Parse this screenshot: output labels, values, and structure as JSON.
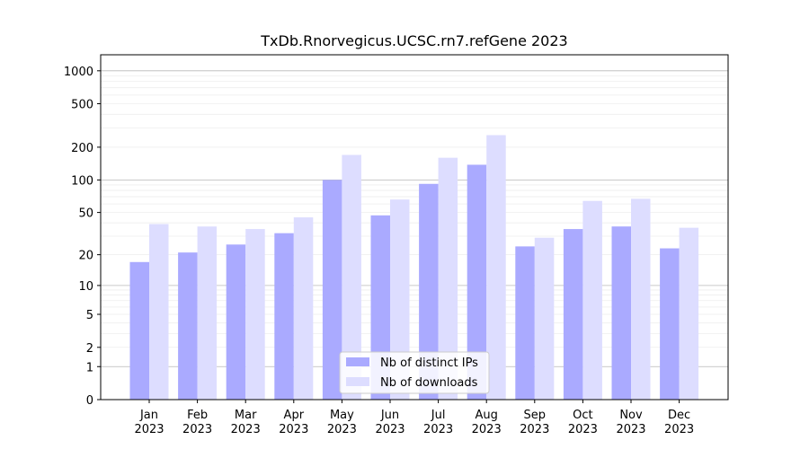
{
  "chart_data": {
    "type": "bar",
    "title": "TxDb.Rnorvegicus.UCSC.rn7.refGene 2023",
    "xlabel": "",
    "ylabel": "",
    "y_scale": "log1p",
    "ylim": [
      0,
      1400
    ],
    "yticks": [
      0,
      1,
      2,
      5,
      10,
      20,
      50,
      100,
      200,
      500,
      1000
    ],
    "ytick_labels": [
      "0",
      "1",
      "2",
      "5",
      "10",
      "20",
      "50",
      "100",
      "200",
      "500",
      "1000"
    ],
    "categories": [
      "Jan\n2023",
      "Feb\n2023",
      "Mar\n2023",
      "Apr\n2023",
      "May\n2023",
      "Jun\n2023",
      "Jul\n2023",
      "Aug\n2023",
      "Sep\n2023",
      "Oct\n2023",
      "Nov\n2023",
      "Dec\n2023"
    ],
    "category_month": [
      "Jan",
      "Feb",
      "Mar",
      "Apr",
      "May",
      "Jun",
      "Jul",
      "Aug",
      "Sep",
      "Oct",
      "Nov",
      "Dec"
    ],
    "category_year": [
      "2023",
      "2023",
      "2023",
      "2023",
      "2023",
      "2023",
      "2023",
      "2023",
      "2023",
      "2023",
      "2023",
      "2023"
    ],
    "series": [
      {
        "name": "Nb of distinct IPs",
        "color": "#aaaaff",
        "values": [
          17,
          21,
          25,
          32,
          100,
          47,
          92,
          138,
          24,
          35,
          37,
          23
        ]
      },
      {
        "name": "Nb of downloads",
        "color": "#ddddff",
        "values": [
          39,
          37,
          35,
          45,
          170,
          66,
          160,
          258,
          29,
          64,
          67,
          36
        ]
      }
    ],
    "grid": true,
    "legend_position": "bottom-center"
  }
}
